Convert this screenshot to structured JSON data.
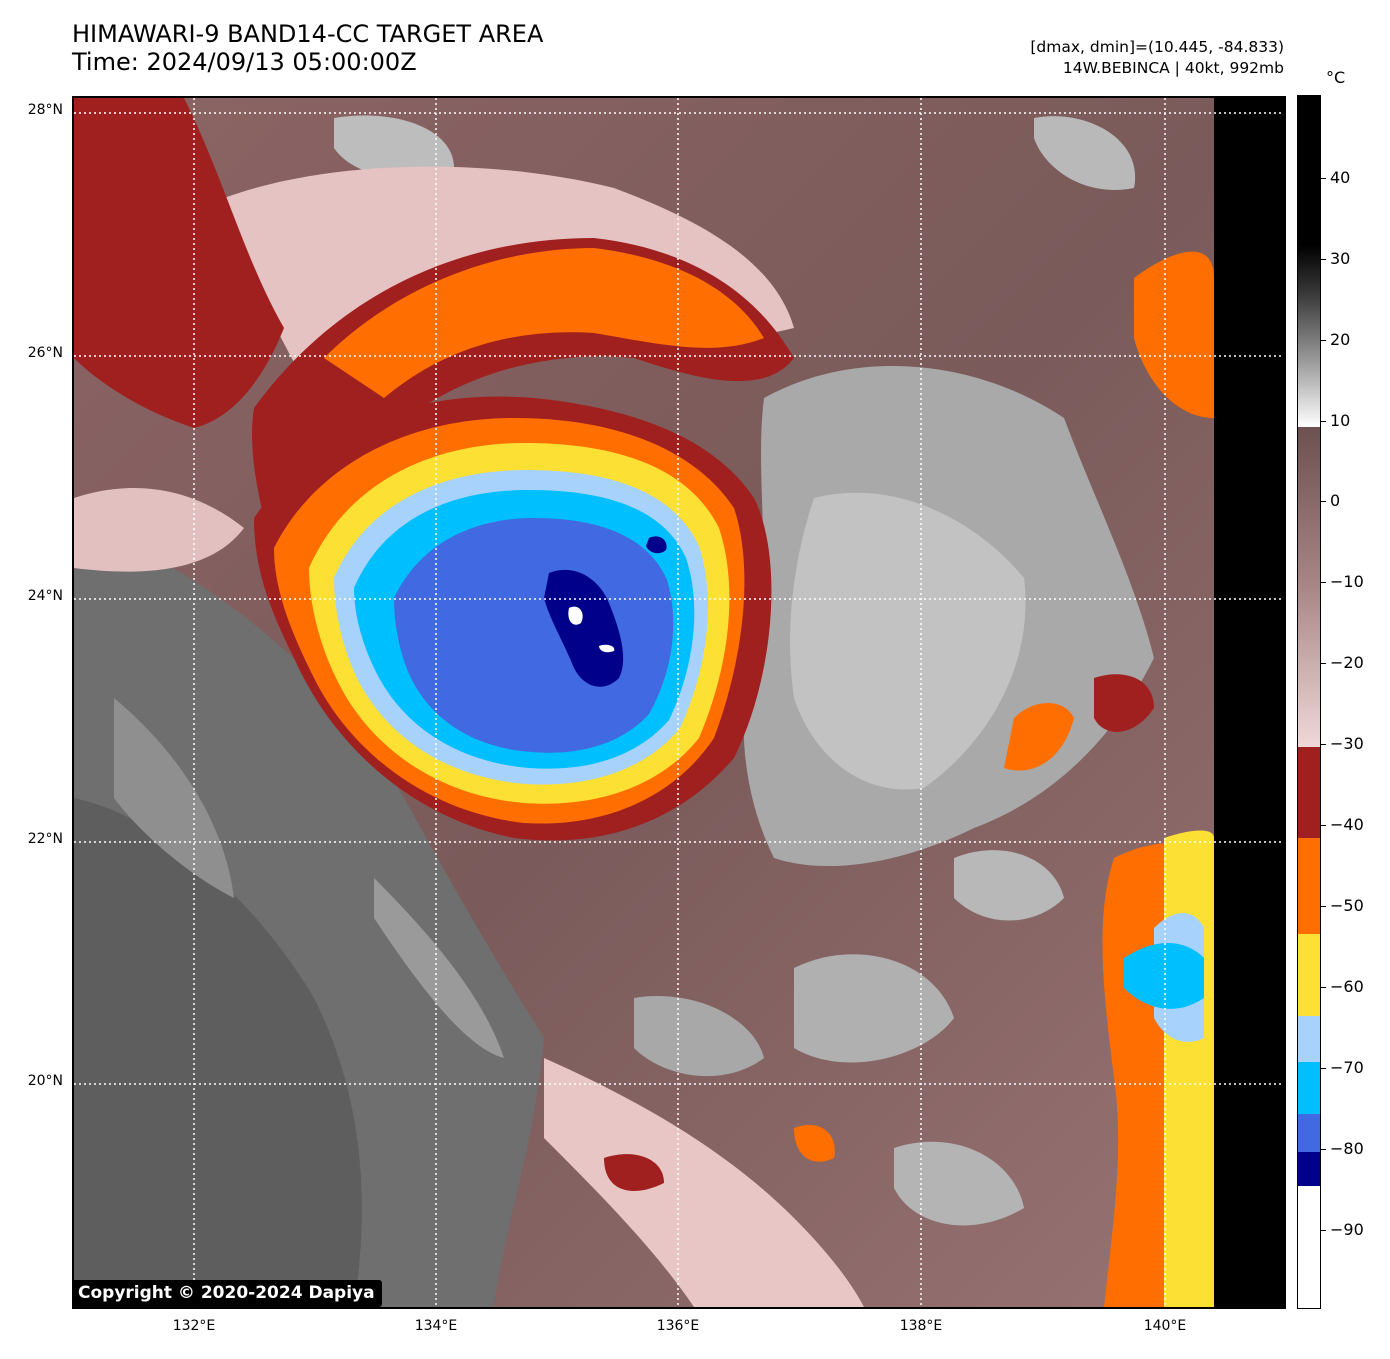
{
  "title": {
    "line1": "HIMAWARI-9 BAND14-CC TARGET AREA",
    "line2": "Time: 2024/09/13 05:00:00Z"
  },
  "info": {
    "range": "[dmax, dmin]=(10.445, -84.833)",
    "storm": "14W.BEBINCA | 40kt, 992mb"
  },
  "map": {
    "lat_labels": [
      "28°N",
      "26°N",
      "24°N",
      "22°N",
      "20°N"
    ],
    "lon_labels": [
      "132°E",
      "134°E",
      "136°E",
      "138°E",
      "140°E"
    ],
    "copyright": "Copyright © 2020-2024 Dapiya"
  },
  "colorbar": {
    "unit": "°C",
    "ticks": [
      "40",
      "30",
      "20",
      "10",
      "0",
      "−10",
      "−20",
      "−30",
      "−40",
      "−50",
      "−60",
      "−70",
      "−80",
      "−90"
    ],
    "colors": {
      "black": "#000000",
      "gray_warm": "#6d5050",
      "pink": "#f0d2d2",
      "dark_red": "#a02020",
      "orange": "#ff6e00",
      "yellow": "#fde034",
      "light_blue": "#a6d2fb",
      "cyan": "#00bfff",
      "royal_blue": "#4169e1",
      "navy": "#00008b",
      "white": "#ffffff"
    }
  }
}
